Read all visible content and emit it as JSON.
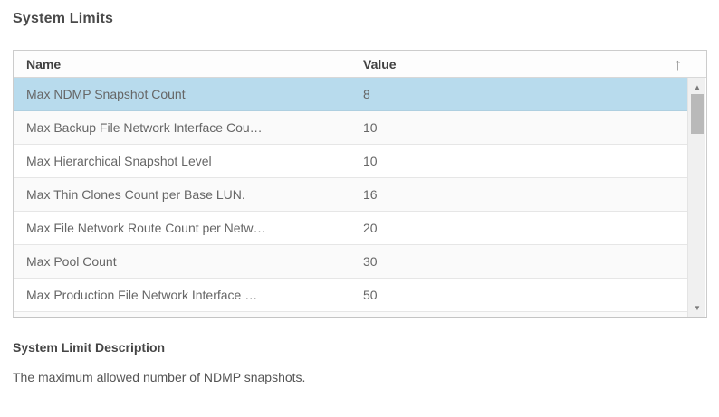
{
  "page": {
    "title": "System Limits"
  },
  "table": {
    "columns": [
      {
        "label": "Name"
      },
      {
        "label": "Value"
      }
    ],
    "sort": {
      "direction": "ascending"
    },
    "rows": [
      {
        "name": "Max NDMP Snapshot Count",
        "value": "8",
        "selected": true
      },
      {
        "name": "Max Backup File Network Interface Cou…",
        "value": "10",
        "selected": false
      },
      {
        "name": "Max Hierarchical Snapshot Level",
        "value": "10",
        "selected": false
      },
      {
        "name": "Max Thin Clones Count per Base LUN.",
        "value": "16",
        "selected": false
      },
      {
        "name": "Max File Network Route Count per Netw…",
        "value": "20",
        "selected": false
      },
      {
        "name": "Max Pool Count",
        "value": "30",
        "selected": false
      },
      {
        "name": "Max Production File Network Interface …",
        "value": "50",
        "selected": false
      }
    ]
  },
  "description": {
    "heading": "System Limit Description",
    "text": "The maximum allowed number of NDMP snapshots."
  },
  "icons": {
    "sort_ascending": "↑",
    "scroll_up": "▲",
    "scroll_down": "▼"
  },
  "colors": {
    "selected_row_bg": "#b8dbed",
    "row_stripe_bg": "#fafafa",
    "table_border": "#cccccc",
    "header_text": "#414141",
    "cell_text": "#666666",
    "scrollbar_track": "#f0f0f0",
    "scrollbar_thumb": "#b9b9b9"
  }
}
